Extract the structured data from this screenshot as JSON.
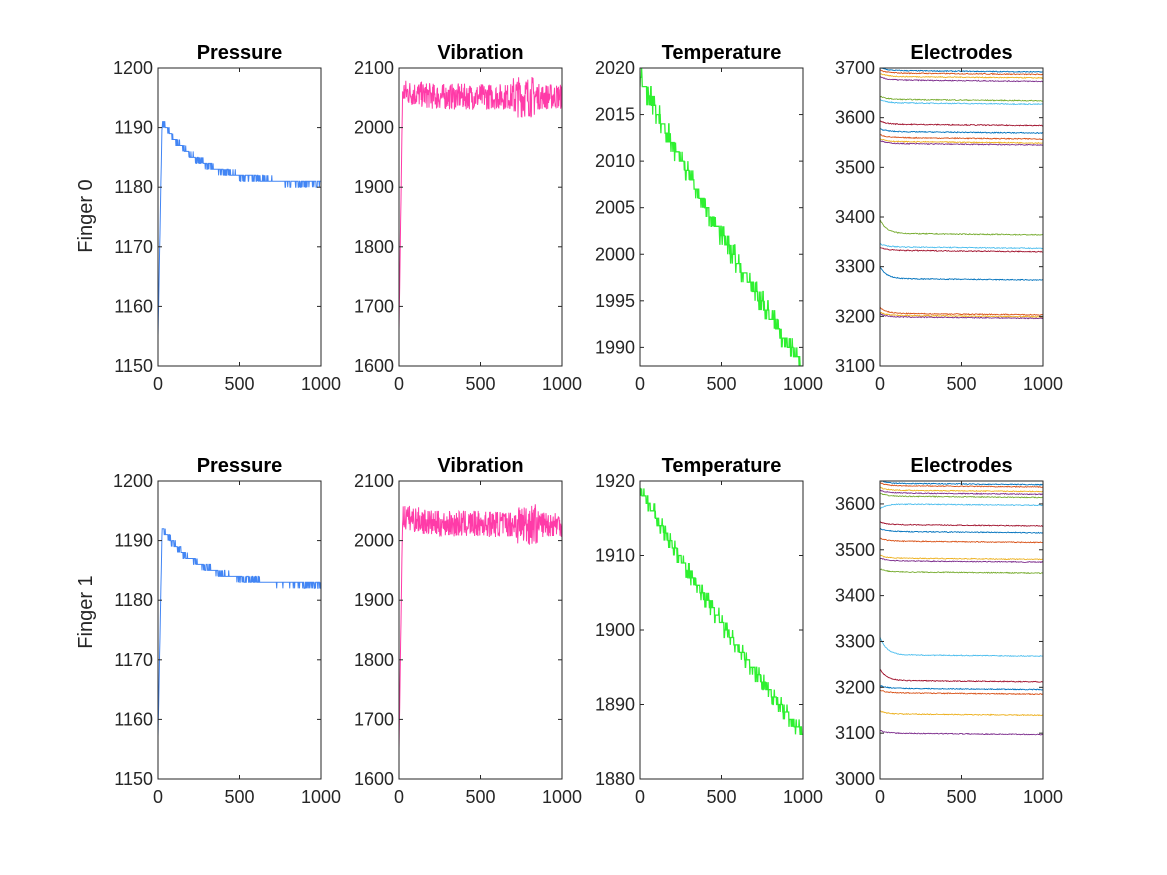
{
  "colors": {
    "pressure": "#4285f4",
    "vibration": "#ff3ba8",
    "temperature": "#2ef030",
    "electrodes": [
      "#0072bd",
      "#d95319",
      "#edb120",
      "#7e2f8e",
      "#77ac30",
      "#4dbeee",
      "#a2142f"
    ]
  },
  "chart_data": [
    {
      "row": "Finger 0",
      "title": "Pressure",
      "type": "line",
      "xlim": [
        0,
        1000
      ],
      "ylim": [
        1150,
        1200
      ],
      "xticks": [
        "0",
        "500",
        "1000"
      ],
      "yticks": [
        "1150",
        "1160",
        "1170",
        "1180",
        "1190",
        "1200"
      ],
      "series": [
        {
          "start": 1155,
          "peak": 1191,
          "end": 1180.5,
          "noise": 0.5
        }
      ]
    },
    {
      "row": "Finger 0",
      "title": "Vibration",
      "type": "line",
      "xlim": [
        0,
        1000
      ],
      "ylim": [
        1600,
        2100
      ],
      "xticks": [
        "0",
        "500",
        "1000"
      ],
      "yticks": [
        "1600",
        "1700",
        "1800",
        "1900",
        "2000",
        "2100"
      ],
      "series": [
        {
          "start": 1660,
          "peak": 2060,
          "end": 2052,
          "noise": 22
        }
      ]
    },
    {
      "row": "Finger 0",
      "title": "Temperature",
      "type": "line",
      "xlim": [
        0,
        1000
      ],
      "ylim": [
        1988,
        2020
      ],
      "xticks": [
        "0",
        "500",
        "1000"
      ],
      "yticks": [
        "1990",
        "1995",
        "2000",
        "2005",
        "2010",
        "2015",
        "2020"
      ],
      "series": [
        {
          "start": 2019,
          "end": 1988
        }
      ]
    },
    {
      "row": "Finger 0",
      "title": "Electrodes",
      "type": "line",
      "xlim": [
        0,
        1000
      ],
      "ylim": [
        3100,
        3700
      ],
      "xticks": [
        "0",
        "500",
        "1000"
      ],
      "yticks": [
        "3100",
        "3200",
        "3300",
        "3400",
        "3500",
        "3600",
        "3700"
      ],
      "series": [
        {
          "level": 3695
        },
        {
          "level": 3690
        },
        {
          "level": 3683
        },
        {
          "level": 3676
        },
        {
          "level": 3637
        },
        {
          "level": 3630
        },
        {
          "level": 3587
        },
        {
          "level": 3572
        },
        {
          "level": 3560
        },
        {
          "level": 3552
        },
        {
          "level": 3548
        },
        {
          "level": 3367,
          "start": 3395
        },
        {
          "level": 3340
        },
        {
          "level": 3333
        },
        {
          "level": 3276,
          "start": 3300
        },
        {
          "level": 3206,
          "start": 3218
        },
        {
          "level": 3202
        },
        {
          "level": 3199
        }
      ]
    },
    {
      "row": "Finger 1",
      "title": "Pressure",
      "type": "line",
      "xlim": [
        0,
        1000
      ],
      "ylim": [
        1150,
        1200
      ],
      "xticks": [
        "0",
        "500",
        "1000"
      ],
      "yticks": [
        "1150",
        "1160",
        "1170",
        "1180",
        "1190",
        "1200"
      ],
      "series": [
        {
          "start": 1157,
          "peak": 1192,
          "end": 1182.5,
          "noise": 0.5
        }
      ]
    },
    {
      "row": "Finger 1",
      "title": "Vibration",
      "type": "line",
      "xlim": [
        0,
        1000
      ],
      "ylim": [
        1600,
        2100
      ],
      "xticks": [
        "0",
        "500",
        "1000"
      ],
      "yticks": [
        "1600",
        "1700",
        "1800",
        "1900",
        "2000",
        "2100"
      ],
      "series": [
        {
          "start": 1650,
          "peak": 2040,
          "end": 2028,
          "noise": 22
        }
      ]
    },
    {
      "row": "Finger 1",
      "title": "Temperature",
      "type": "line",
      "xlim": [
        0,
        1000
      ],
      "ylim": [
        1880,
        1920
      ],
      "xticks": [
        "0",
        "500",
        "1000"
      ],
      "yticks": [
        "1880",
        "1890",
        "1900",
        "1910",
        "1920"
      ],
      "series": [
        {
          "start": 1919,
          "end": 1886
        }
      ]
    },
    {
      "row": "Finger 1",
      "title": "Electrodes",
      "type": "line",
      "xlim": [
        0,
        1000
      ],
      "ylim": [
        3000,
        3650
      ],
      "xticks": [
        "0",
        "500",
        "1000"
      ],
      "yticks": [
        "3000",
        "3100",
        "3200",
        "3300",
        "3400",
        "3500",
        "3600"
      ],
      "series": [
        {
          "level": 3645
        },
        {
          "level": 3640
        },
        {
          "level": 3630
        },
        {
          "level": 3624
        },
        {
          "level": 3617
        },
        {
          "level": 3600,
          "start": 3590
        },
        {
          "level": 3555
        },
        {
          "level": 3540
        },
        {
          "level": 3519
        },
        {
          "level": 3482
        },
        {
          "level": 3476
        },
        {
          "level": 3452
        },
        {
          "level": 3271,
          "start": 3310
        },
        {
          "level": 3215,
          "start": 3240
        },
        {
          "level": 3198
        },
        {
          "level": 3188
        },
        {
          "level": 3142
        },
        {
          "level": 3100
        }
      ]
    }
  ]
}
